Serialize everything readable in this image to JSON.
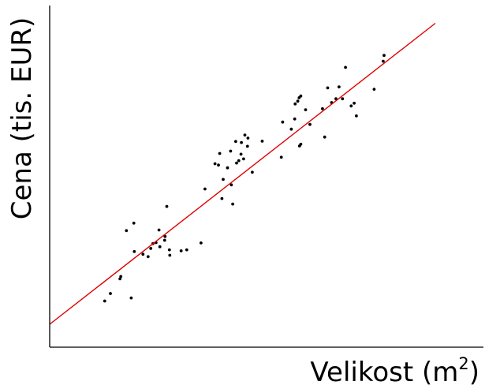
{
  "chart_data": {
    "type": "scatter",
    "title": "",
    "xlabel": "Velikost (m",
    "xlabel_sup": "2",
    "xlabel_close": ")",
    "ylabel": "Cena (tis. EUR)",
    "xlim": [
      0,
      100
    ],
    "ylim": [
      0,
      100
    ],
    "grid": false,
    "ticks": false,
    "colors": {
      "points": "#000000",
      "fit_line": "#e00000",
      "axes": "#000000"
    },
    "fit_line": {
      "x": [
        0,
        88.9
      ],
      "y": [
        6.7,
        94.8
      ]
    },
    "points": [
      {
        "x": 12.7,
        "y": 13.5
      },
      {
        "x": 14.0,
        "y": 15.7
      },
      {
        "x": 16.2,
        "y": 20.0
      },
      {
        "x": 16.4,
        "y": 20.7
      },
      {
        "x": 18.8,
        "y": 14.4
      },
      {
        "x": 17.7,
        "y": 34.1
      },
      {
        "x": 19.4,
        "y": 36.3
      },
      {
        "x": 19.5,
        "y": 28.0
      },
      {
        "x": 21.5,
        "y": 27.2
      },
      {
        "x": 22.7,
        "y": 26.5
      },
      {
        "x": 23.3,
        "y": 28.9
      },
      {
        "x": 23.8,
        "y": 30.3
      },
      {
        "x": 24.5,
        "y": 30.6
      },
      {
        "x": 25.4,
        "y": 29.4
      },
      {
        "x": 25.2,
        "y": 34.3
      },
      {
        "x": 26.5,
        "y": 31.3
      },
      {
        "x": 26.6,
        "y": 32.4
      },
      {
        "x": 27.0,
        "y": 41.2
      },
      {
        "x": 27.6,
        "y": 28.5
      },
      {
        "x": 27.7,
        "y": 26.9
      },
      {
        "x": 30.3,
        "y": 28.2
      },
      {
        "x": 31.6,
        "y": 28.5
      },
      {
        "x": 34.9,
        "y": 30.5
      },
      {
        "x": 35.8,
        "y": 46.3
      },
      {
        "x": 38.1,
        "y": 53.7
      },
      {
        "x": 39.2,
        "y": 56.7
      },
      {
        "x": 38.9,
        "y": 53.3
      },
      {
        "x": 39.7,
        "y": 43.5
      },
      {
        "x": 40.0,
        "y": 49.1
      },
      {
        "x": 41.0,
        "y": 52.5
      },
      {
        "x": 41.7,
        "y": 57.4
      },
      {
        "x": 41.9,
        "y": 47.5
      },
      {
        "x": 42.2,
        "y": 41.9
      },
      {
        "x": 42.9,
        "y": 60.2
      },
      {
        "x": 43.1,
        "y": 53.9
      },
      {
        "x": 43.6,
        "y": 54.6
      },
      {
        "x": 44.1,
        "y": 56.5
      },
      {
        "x": 44.2,
        "y": 59.9
      },
      {
        "x": 44.7,
        "y": 55.1
      },
      {
        "x": 45.0,
        "y": 62.1
      },
      {
        "x": 45.6,
        "y": 58.8
      },
      {
        "x": 45.7,
        "y": 61.2
      },
      {
        "x": 46.7,
        "y": 51.2
      },
      {
        "x": 49.0,
        "y": 60.3
      },
      {
        "x": 53.4,
        "y": 55.6
      },
      {
        "x": 53.7,
        "y": 65.9
      },
      {
        "x": 55.7,
        "y": 63.8
      },
      {
        "x": 56.6,
        "y": 71.2
      },
      {
        "x": 57.5,
        "y": 73.0
      },
      {
        "x": 57.2,
        "y": 72.0
      },
      {
        "x": 57.9,
        "y": 73.5
      },
      {
        "x": 56.5,
        "y": 66.8
      },
      {
        "x": 57.9,
        "y": 59.4
      },
      {
        "x": 57.6,
        "y": 58.9
      },
      {
        "x": 59.0,
        "y": 69.5
      },
      {
        "x": 60.0,
        "y": 65.2
      },
      {
        "x": 62.9,
        "y": 69.8
      },
      {
        "x": 63.4,
        "y": 61.5
      },
      {
        "x": 64.1,
        "y": 75.9
      },
      {
        "x": 65.0,
        "y": 71.6
      },
      {
        "x": 66.0,
        "y": 72.7
      },
      {
        "x": 66.7,
        "y": 76.2
      },
      {
        "x": 67.5,
        "y": 72.7
      },
      {
        "x": 68.2,
        "y": 81.9
      },
      {
        "x": 69.5,
        "y": 70.6
      },
      {
        "x": 70.2,
        "y": 71.4
      },
      {
        "x": 70.7,
        "y": 67.7
      },
      {
        "x": 74.8,
        "y": 75.5
      },
      {
        "x": 76.9,
        "y": 83.7
      },
      {
        "x": 77.1,
        "y": 85.4
      }
    ]
  }
}
